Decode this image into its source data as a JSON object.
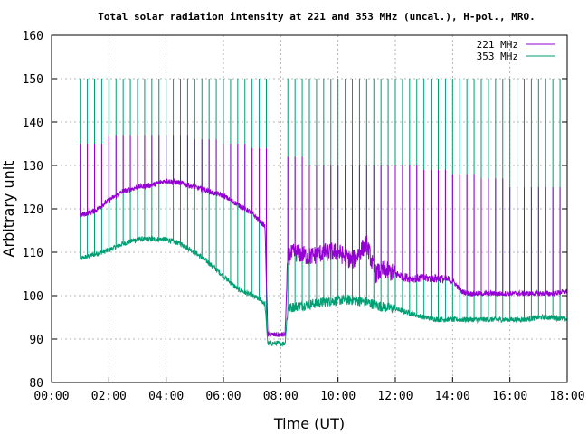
{
  "chart_data": {
    "type": "line",
    "title": "Total solar radiation intensity at 221 and 353 MHz (uncal.), H-pol., MRO.",
    "xlabel": "Time (UT)",
    "ylabel": "Arbitrary unit",
    "xlim": [
      0,
      18
    ],
    "ylim": [
      80,
      160
    ],
    "x_ticks": [
      "00:00",
      "02:00",
      "04:00",
      "06:00",
      "08:00",
      "10:00",
      "12:00",
      "14:00",
      "16:00",
      "18:00"
    ],
    "y_ticks": [
      "80",
      "90",
      "100",
      "110",
      "120",
      "130",
      "140",
      "150",
      "160"
    ],
    "grid": true,
    "legend_position": "top-right",
    "series": [
      {
        "name": "221 MHz",
        "color": "#9400d3",
        "x_hours": [
          1.0,
          1.5,
          2.0,
          2.5,
          3.0,
          3.5,
          4.0,
          4.5,
          5.0,
          5.5,
          6.0,
          6.5,
          7.0,
          7.3,
          7.45,
          7.55,
          8.0,
          8.15,
          8.25,
          8.5,
          9.0,
          9.5,
          10.0,
          10.5,
          11.0,
          11.3,
          11.6,
          12.0,
          12.5,
          13.0,
          13.5,
          14.0,
          14.3,
          14.6,
          15.0,
          15.5,
          16.0,
          16.5,
          17.0,
          17.5,
          18.0
        ],
        "values": [
          118.5,
          119.5,
          122.0,
          124.0,
          125.0,
          125.5,
          126.5,
          126.0,
          125.0,
          124.0,
          123.0,
          121.0,
          119.0,
          117.0,
          116.0,
          91.0,
          91.0,
          91.0,
          109.0,
          110.0,
          109.0,
          110.0,
          110.0,
          108.0,
          112.0,
          105.0,
          106.0,
          105.0,
          104.0,
          104.0,
          104.0,
          103.5,
          101.0,
          100.5,
          100.5,
          100.5,
          100.5,
          100.5,
          100.5,
          100.5,
          101.0
        ],
        "spike_every_hours": 0.25,
        "spike_start_hours": 1.0,
        "spike_end_hours": 17.75,
        "spike_peak_values": [
          135,
          137,
          137,
          137,
          136,
          135,
          134,
          132,
          130,
          130,
          130,
          130,
          129,
          128,
          127,
          125,
          125,
          125
        ]
      },
      {
        "name": "353 MHz",
        "color": "#009e73",
        "x_hours": [
          1.0,
          1.5,
          2.0,
          2.5,
          3.0,
          3.5,
          4.0,
          4.5,
          5.0,
          5.5,
          6.0,
          6.5,
          7.0,
          7.3,
          7.45,
          7.55,
          8.0,
          8.15,
          8.25,
          8.5,
          9.0,
          9.5,
          10.0,
          10.5,
          11.0,
          11.5,
          12.0,
          12.5,
          13.0,
          13.5,
          14.0,
          14.5,
          15.0,
          15.5,
          16.0,
          16.5,
          17.0,
          17.5,
          18.0
        ],
        "values": [
          108.5,
          109.5,
          110.5,
          112.0,
          113.0,
          113.0,
          113.0,
          112.0,
          110.0,
          107.5,
          104.5,
          101.5,
          100.0,
          99.0,
          98.0,
          89.0,
          89.0,
          89.0,
          97.0,
          97.5,
          98.0,
          98.5,
          99.0,
          99.0,
          98.5,
          97.5,
          97.0,
          96.0,
          95.0,
          94.5,
          94.5,
          94.5,
          94.5,
          94.5,
          94.5,
          94.5,
          95.0,
          95.0,
          94.5
        ],
        "spike_every_hours": 0.25,
        "spike_start_hours": 1.0,
        "spike_end_hours": 17.75,
        "spike_peak_value": 150
      }
    ]
  }
}
